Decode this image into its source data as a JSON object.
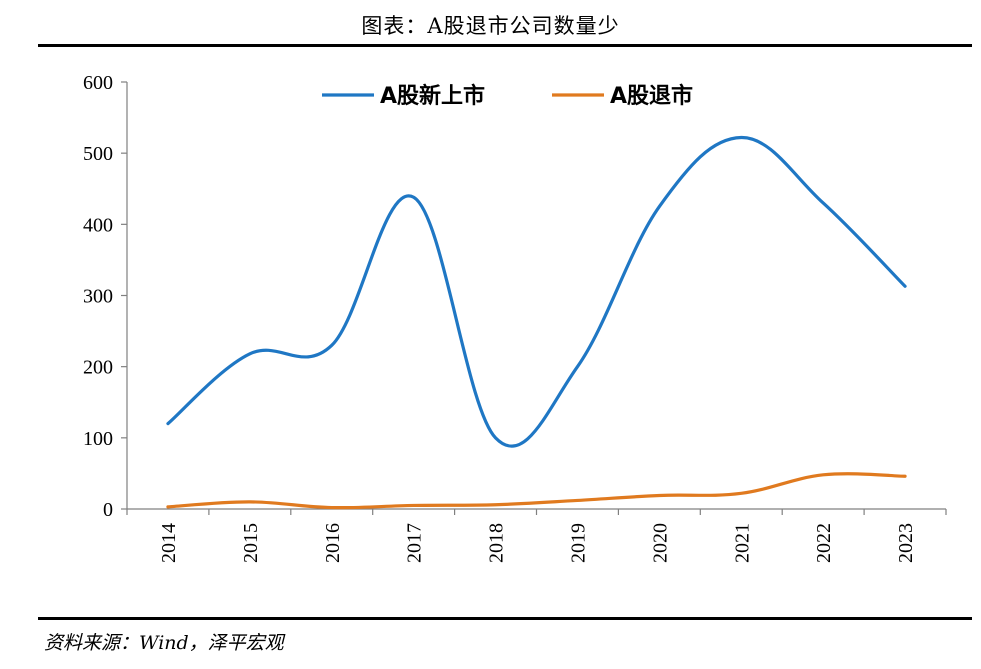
{
  "header": {
    "title": "图表：A股退市公司数量少"
  },
  "footer": {
    "source": "资料来源：Wind，泽平宏观"
  },
  "chart_data": {
    "type": "line",
    "categories": [
      "2014",
      "2015",
      "2016",
      "2017",
      "2018",
      "2019",
      "2020",
      "2021",
      "2022",
      "2023"
    ],
    "ylim": [
      0,
      600
    ],
    "yticks": [
      0,
      100,
      200,
      300,
      400,
      500,
      600
    ],
    "legend_position": "top",
    "grid": false,
    "series": [
      {
        "name": "A股新上市",
        "color": "#1f77c4",
        "values": [
          120,
          218,
          230,
          438,
          100,
          200,
          425,
          522,
          430,
          313
        ]
      },
      {
        "name": "A股退市",
        "color": "#e07a1f",
        "values": [
          3,
          10,
          2,
          5,
          6,
          12,
          19,
          22,
          48,
          46
        ]
      }
    ]
  }
}
